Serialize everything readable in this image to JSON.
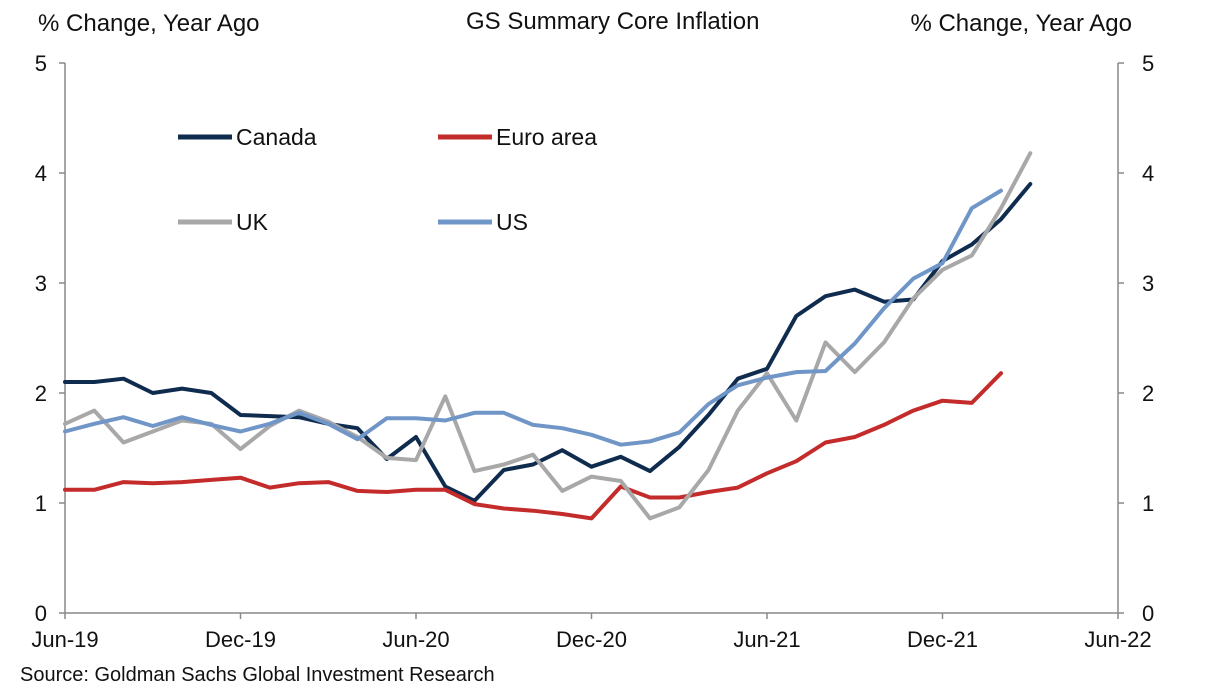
{
  "header": {
    "title": "GS Summary Core Inflation",
    "ylabel_left": "% Change, Year Ago",
    "ylabel_right": "% Change, Year Ago"
  },
  "source": "Source: Goldman Sachs Global Investment Research",
  "colors": {
    "Canada": "#0f2c4f",
    "Euro area": "#c42b2b",
    "UK": "#a8a8a8",
    "US": "#7096c8",
    "axis": "#888888"
  },
  "chart_data": {
    "type": "line",
    "title": "GS Summary Core Inflation",
    "ylabel": "% Change, Year Ago",
    "ylabel_right": "% Change, Year Ago",
    "xlabel": "",
    "ylim": [
      0,
      5
    ],
    "y_ticks": [
      0,
      1,
      2,
      3,
      4,
      5
    ],
    "x_range": [
      "2019-06",
      "2022-06"
    ],
    "x_tick_labels": [
      "Jun-19",
      "Dec-19",
      "Jun-20",
      "Dec-20",
      "Jun-21",
      "Dec-21",
      "Jun-22"
    ],
    "x_tick_dates": [
      "2019-06",
      "2019-12",
      "2020-06",
      "2020-12",
      "2021-06",
      "2021-12",
      "2022-06"
    ],
    "grid": false,
    "legend": "upper-left, inside plot",
    "series": [
      {
        "name": "Canada",
        "x": [
          "2019-06",
          "2019-07",
          "2019-08",
          "2019-09",
          "2019-10",
          "2019-11",
          "2019-12",
          "2020-01",
          "2020-02",
          "2020-03",
          "2020-04",
          "2020-05",
          "2020-06",
          "2020-07",
          "2020-08",
          "2020-09",
          "2020-10",
          "2020-11",
          "2020-12",
          "2021-01",
          "2021-02",
          "2021-03",
          "2021-04",
          "2021-05",
          "2021-06",
          "2021-07",
          "2021-08",
          "2021-09",
          "2021-10",
          "2021-11",
          "2021-12",
          "2022-01",
          "2022-02",
          "2022-03"
        ],
        "values": [
          2.1,
          2.1,
          2.13,
          2.0,
          2.04,
          2.0,
          1.8,
          1.79,
          1.78,
          1.72,
          1.68,
          1.4,
          1.6,
          1.15,
          1.02,
          1.3,
          1.35,
          1.48,
          1.33,
          1.42,
          1.29,
          1.51,
          1.8,
          2.13,
          2.22,
          2.7,
          2.88,
          2.94,
          2.83,
          2.85,
          3.2,
          3.35,
          3.58,
          3.9
        ]
      },
      {
        "name": "Euro area",
        "x": [
          "2019-06",
          "2019-07",
          "2019-08",
          "2019-09",
          "2019-10",
          "2019-11",
          "2019-12",
          "2020-01",
          "2020-02",
          "2020-03",
          "2020-04",
          "2020-05",
          "2020-06",
          "2020-07",
          "2020-08",
          "2020-09",
          "2020-10",
          "2020-11",
          "2020-12",
          "2021-01",
          "2021-02",
          "2021-03",
          "2021-04",
          "2021-05",
          "2021-06",
          "2021-07",
          "2021-08",
          "2021-09",
          "2021-10",
          "2021-11",
          "2021-12",
          "2022-01",
          "2022-02"
        ],
        "values": [
          1.12,
          1.12,
          1.19,
          1.18,
          1.19,
          1.21,
          1.23,
          1.14,
          1.18,
          1.19,
          1.11,
          1.1,
          1.12,
          1.12,
          0.99,
          0.95,
          0.93,
          0.9,
          0.86,
          1.15,
          1.05,
          1.05,
          1.1,
          1.14,
          1.27,
          1.38,
          1.55,
          1.6,
          1.71,
          1.84,
          1.93,
          1.91,
          2.18
        ]
      },
      {
        "name": "UK",
        "x": [
          "2019-06",
          "2019-07",
          "2019-08",
          "2019-09",
          "2019-10",
          "2019-11",
          "2019-12",
          "2020-01",
          "2020-02",
          "2020-03",
          "2020-04",
          "2020-05",
          "2020-06",
          "2020-07",
          "2020-08",
          "2020-09",
          "2020-10",
          "2020-11",
          "2020-12",
          "2021-01",
          "2021-02",
          "2021-03",
          "2021-04",
          "2021-05",
          "2021-06",
          "2021-07",
          "2021-08",
          "2021-09",
          "2021-10",
          "2021-11",
          "2021-12",
          "2022-01",
          "2022-02",
          "2022-03"
        ],
        "values": [
          1.72,
          1.84,
          1.55,
          1.65,
          1.75,
          1.72,
          1.49,
          1.7,
          1.84,
          1.74,
          1.6,
          1.41,
          1.39,
          1.97,
          1.29,
          1.35,
          1.44,
          1.11,
          1.24,
          1.2,
          0.86,
          0.96,
          1.3,
          1.84,
          2.18,
          1.75,
          2.46,
          2.19,
          2.46,
          2.86,
          3.12,
          3.25,
          3.68,
          4.18
        ]
      },
      {
        "name": "US",
        "x": [
          "2019-06",
          "2019-07",
          "2019-08",
          "2019-09",
          "2019-10",
          "2019-11",
          "2019-12",
          "2020-01",
          "2020-02",
          "2020-03",
          "2020-04",
          "2020-05",
          "2020-06",
          "2020-07",
          "2020-08",
          "2020-09",
          "2020-10",
          "2020-11",
          "2020-12",
          "2021-01",
          "2021-02",
          "2021-03",
          "2021-04",
          "2021-05",
          "2021-06",
          "2021-07",
          "2021-08",
          "2021-09",
          "2021-10",
          "2021-11",
          "2021-12",
          "2022-01",
          "2022-02"
        ],
        "values": [
          1.65,
          1.72,
          1.78,
          1.7,
          1.78,
          1.71,
          1.65,
          1.72,
          1.82,
          1.72,
          1.58,
          1.77,
          1.77,
          1.75,
          1.82,
          1.82,
          1.71,
          1.68,
          1.62,
          1.53,
          1.56,
          1.64,
          1.9,
          2.07,
          2.14,
          2.19,
          2.2,
          2.45,
          2.77,
          3.04,
          3.18,
          3.68,
          3.84
        ]
      }
    ]
  }
}
